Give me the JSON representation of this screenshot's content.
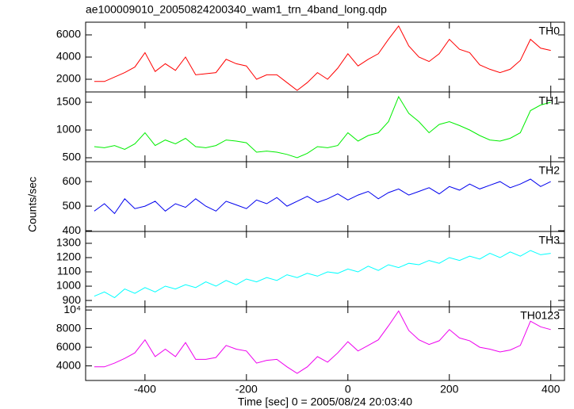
{
  "chart_data": [
    {
      "type": "line",
      "title": "ae100009010_20050824200340_wam1_trn_4band_long.qdp",
      "x": [
        -500,
        -480,
        -460,
        -440,
        -420,
        -400,
        -380,
        -360,
        -340,
        -320,
        -300,
        -280,
        -260,
        -240,
        -220,
        -200,
        -180,
        -160,
        -140,
        -120,
        -100,
        -80,
        -60,
        -40,
        -20,
        0,
        20,
        40,
        60,
        80,
        100,
        120,
        140,
        160,
        180,
        200,
        220,
        240,
        260,
        280,
        300,
        320,
        340,
        360,
        380,
        400
      ],
      "series": [
        {
          "name": "TH0",
          "color": "#ff0000",
          "values": [
            1800,
            1800,
            2200,
            2600,
            3100,
            4400,
            2700,
            3400,
            2800,
            4000,
            2400,
            2500,
            2600,
            3800,
            3400,
            3200,
            2000,
            2400,
            2400,
            1700,
            1000,
            1700,
            2600,
            2000,
            3000,
            4300,
            3200,
            3800,
            4300,
            5600,
            6800,
            5000,
            4000,
            3600,
            4300,
            5600,
            4700,
            4400,
            3300,
            2900,
            2600,
            2900,
            3700,
            5600,
            4800,
            4600
          ]
        }
      ],
      "xlim": [
        -517,
        427
      ],
      "ylim": [
        857,
        7143
      ],
      "yticks": [
        2000,
        4000,
        6000
      ]
    },
    {
      "type": "line",
      "x": [
        -500,
        -480,
        -460,
        -440,
        -420,
        -400,
        -380,
        -360,
        -340,
        -320,
        -300,
        -280,
        -260,
        -240,
        -220,
        -200,
        -180,
        -160,
        -140,
        -120,
        -100,
        -80,
        -60,
        -40,
        -20,
        0,
        20,
        40,
        60,
        80,
        100,
        120,
        140,
        160,
        180,
        200,
        220,
        240,
        260,
        280,
        300,
        320,
        340,
        360,
        380,
        400
      ],
      "series": [
        {
          "name": "TH1",
          "color": "#00ee00",
          "values": [
            700,
            680,
            720,
            650,
            750,
            950,
            720,
            820,
            750,
            850,
            700,
            680,
            720,
            820,
            800,
            770,
            600,
            620,
            600,
            560,
            500,
            580,
            700,
            680,
            720,
            950,
            800,
            900,
            950,
            1150,
            1600,
            1300,
            1150,
            950,
            1100,
            1150,
            1080,
            1000,
            900,
            820,
            800,
            850,
            950,
            1350,
            1450,
            1500
          ]
        }
      ],
      "xlim": [
        -517,
        427
      ],
      "ylim": [
        429,
        1686
      ],
      "yticks": [
        500,
        1000,
        1500
      ]
    },
    {
      "type": "line",
      "ylabel": "Counts/sec",
      "x": [
        -500,
        -480,
        -460,
        -440,
        -420,
        -400,
        -380,
        -360,
        -340,
        -320,
        -300,
        -280,
        -260,
        -240,
        -220,
        -200,
        -180,
        -160,
        -140,
        -120,
        -100,
        -80,
        -60,
        -40,
        -20,
        0,
        20,
        40,
        60,
        80,
        100,
        120,
        140,
        160,
        180,
        200,
        220,
        240,
        260,
        280,
        300,
        320,
        340,
        360,
        380,
        400
      ],
      "series": [
        {
          "name": "TH2",
          "color": "#0000ee",
          "values": [
            480,
            510,
            470,
            530,
            490,
            500,
            520,
            480,
            510,
            495,
            530,
            500,
            480,
            520,
            505,
            490,
            525,
            510,
            535,
            500,
            520,
            540,
            515,
            530,
            550,
            525,
            545,
            560,
            530,
            555,
            570,
            545,
            560,
            575,
            550,
            580,
            565,
            590,
            570,
            585,
            600,
            575,
            590,
            610,
            580,
            600
          ]
        }
      ],
      "xlim": [
        -517,
        427
      ],
      "ylim": [
        397,
        681
      ],
      "yticks": [
        400,
        500,
        600
      ]
    },
    {
      "type": "line",
      "x": [
        -500,
        -480,
        -460,
        -440,
        -420,
        -400,
        -380,
        -360,
        -340,
        -320,
        -300,
        -280,
        -260,
        -240,
        -220,
        -200,
        -180,
        -160,
        -140,
        -120,
        -100,
        -80,
        -60,
        -40,
        -20,
        0,
        20,
        40,
        60,
        80,
        100,
        120,
        140,
        160,
        180,
        200,
        220,
        240,
        260,
        280,
        300,
        320,
        340,
        360,
        380,
        400
      ],
      "series": [
        {
          "name": "TH3",
          "color": "#00ffff",
          "values": [
            930,
            960,
            920,
            980,
            950,
            990,
            960,
            1000,
            980,
            1010,
            990,
            1030,
            1000,
            1040,
            1010,
            1050,
            1030,
            1060,
            1040,
            1080,
            1060,
            1090,
            1070,
            1100,
            1090,
            1120,
            1100,
            1140,
            1110,
            1150,
            1130,
            1160,
            1150,
            1180,
            1160,
            1200,
            1180,
            1210,
            1190,
            1230,
            1200,
            1240,
            1210,
            1250,
            1220,
            1230
          ]
        }
      ],
      "xlim": [
        -517,
        427
      ],
      "ylim": [
        856,
        1383
      ],
      "yticks": [
        900,
        1000,
        1100,
        1200,
        1300
      ]
    },
    {
      "type": "line",
      "xlabel": "Time [sec] 0 = 2005/08/24 20:03:40",
      "x": [
        -500,
        -480,
        -460,
        -440,
        -420,
        -400,
        -380,
        -360,
        -340,
        -320,
        -300,
        -280,
        -260,
        -240,
        -220,
        -200,
        -180,
        -160,
        -140,
        -120,
        -100,
        -80,
        -60,
        -40,
        -20,
        0,
        20,
        40,
        60,
        80,
        100,
        120,
        140,
        160,
        180,
        200,
        220,
        240,
        260,
        280,
        300,
        320,
        340,
        360,
        380,
        400
      ],
      "series": [
        {
          "name": "TH0123",
          "color": "#ee00ee",
          "values": [
            3900,
            3900,
            4300,
            4800,
            5400,
            6800,
            5000,
            5800,
            5000,
            6500,
            4700,
            4700,
            4900,
            6200,
            5800,
            5600,
            4300,
            4600,
            4700,
            3900,
            3200,
            3900,
            5000,
            4400,
            5400,
            6600,
            5600,
            6200,
            6800,
            8300,
            9900,
            7800,
            6800,
            6300,
            6700,
            7900,
            7000,
            6700,
            6000,
            5800,
            5500,
            5700,
            6200,
            8800,
            8200,
            7900
          ]
        }
      ],
      "xlim": [
        -517,
        427
      ],
      "ylim": [
        2435,
        10350
      ],
      "yticks": [
        4000,
        6000,
        8000,
        {
          "value": 10000,
          "label": "10⁴"
        }
      ],
      "xticks": [
        -400,
        -200,
        0,
        200,
        400
      ]
    }
  ]
}
